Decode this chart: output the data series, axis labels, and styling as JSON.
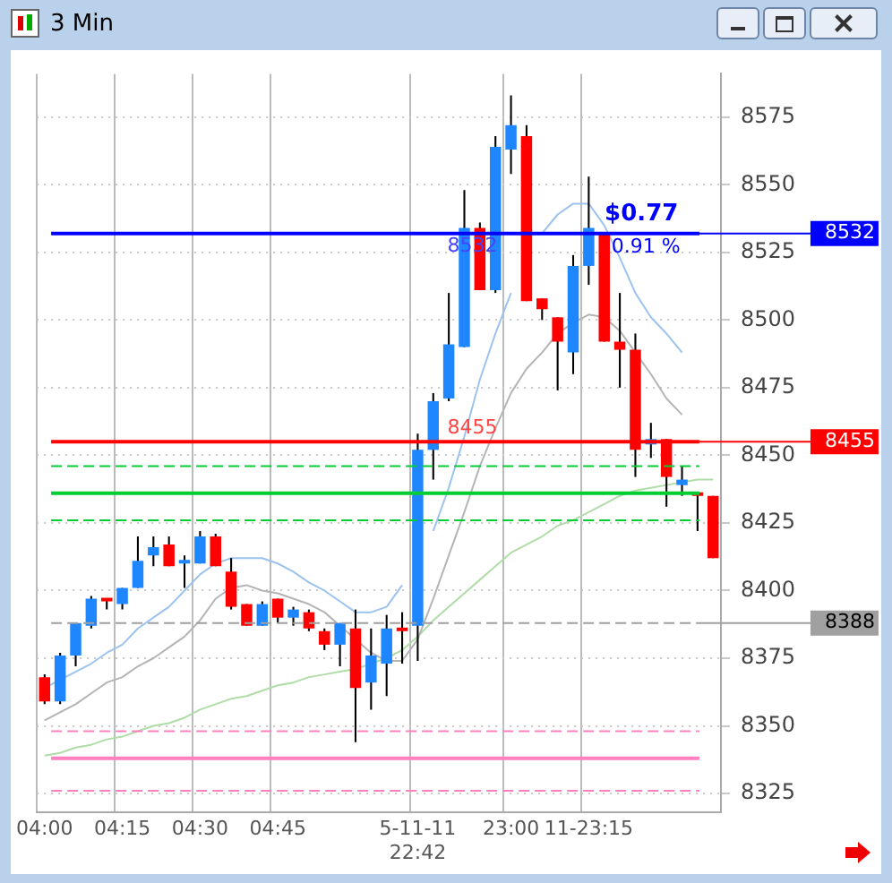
{
  "chart_data": {
    "type": "candlestick",
    "title": "3 Min",
    "categories": [
      "04:00",
      null,
      null,
      null,
      null,
      "04:15",
      null,
      null,
      null,
      null,
      "04:30",
      null,
      null,
      null,
      null,
      "04:45",
      null,
      null,
      null,
      null,
      null,
      null,
      null,
      null,
      "5-11-11 22:42",
      null,
      null,
      null,
      null,
      null,
      "23:00",
      null,
      null,
      null,
      null,
      "11-23:15",
      null,
      null,
      null,
      null,
      null,
      null,
      null,
      null
    ],
    "ohlc": [
      [
        8368,
        8369,
        8358,
        8359
      ],
      [
        8359,
        8377,
        8358,
        8376
      ],
      [
        8376,
        8388,
        8372,
        8388
      ],
      [
        8387,
        8398,
        8386,
        8397
      ],
      [
        8397,
        8397,
        8393,
        8396
      ],
      [
        8395,
        8401,
        8393,
        8401
      ],
      [
        8401,
        8420,
        8401,
        8411
      ],
      [
        8413,
        8420,
        8409,
        8416
      ],
      [
        8417,
        8420,
        8409,
        8409
      ],
      [
        8410,
        8413,
        8401,
        8411
      ],
      [
        8410,
        8422,
        8410,
        8420
      ],
      [
        8420,
        8421,
        8409,
        8409
      ],
      [
        8407,
        8412,
        8393,
        8394
      ],
      [
        8395,
        8395,
        8387,
        8387
      ],
      [
        8387,
        8396,
        8387,
        8395
      ],
      [
        8397,
        8397,
        8388,
        8390
      ],
      [
        8390,
        8394,
        8387,
        8393
      ],
      [
        8392,
        8393,
        8385,
        8386
      ],
      [
        8385,
        8386,
        8378,
        8380
      ],
      [
        8380,
        8388,
        8372,
        8388
      ],
      [
        8386,
        8393,
        8344,
        8364
      ],
      [
        8366,
        8386,
        8356,
        8376
      ],
      [
        8373,
        8391,
        8361,
        8386
      ],
      [
        8386,
        8392,
        8373,
        8385
      ],
      [
        8387,
        8458,
        8374,
        8452
      ],
      [
        8452,
        8473,
        8441,
        8470
      ],
      [
        8471,
        8510,
        8470,
        8491
      ],
      [
        8490,
        8548,
        8490,
        8534
      ],
      [
        8534,
        8536,
        8511,
        8511
      ],
      [
        8511,
        8568,
        8510,
        8564
      ],
      [
        8563,
        8583,
        8554,
        8572
      ],
      [
        8568,
        8572,
        8507,
        8507
      ],
      [
        8508,
        8508,
        8500,
        8504
      ],
      [
        8501,
        8501,
        8474,
        8492
      ],
      [
        8488,
        8524,
        8480,
        8520
      ],
      [
        8520,
        8553,
        8513,
        8534
      ],
      [
        8532,
        8532,
        8492,
        8492
      ],
      [
        8492,
        8510,
        8475,
        8489
      ],
      [
        8489,
        8495,
        8442,
        8452
      ],
      [
        8454,
        8462,
        8449,
        8456
      ],
      [
        8456,
        8456,
        8431,
        8442
      ],
      [
        8439,
        8446,
        8435,
        8441
      ],
      [
        8436,
        8436,
        8422,
        8435
      ],
      [
        8435,
        8435,
        8412,
        8412
      ]
    ],
    "series": [
      {
        "type": "line",
        "color": "#9cc3ee",
        "values": [
          8364,
          8367,
          8370,
          8373,
          8377,
          8380,
          8386,
          8390,
          8394,
          8400,
          8406,
          8410,
          8412,
          8412,
          8412,
          8410,
          8407,
          8403,
          8400,
          8396,
          8392,
          8392,
          8394,
          8402,
          null,
          8422,
          8438,
          8457,
          8478,
          8495,
          8510,
          null,
          8532,
          8539,
          8543,
          8543,
          8535,
          8523,
          8510,
          8501,
          8495,
          8488,
          null,
          null
        ]
      },
      {
        "type": "line",
        "color": "#b4b4b4",
        "values": [
          8352,
          8355,
          8358,
          8362,
          8366,
          8368,
          8372,
          8375,
          8379,
          8383,
          8389,
          8397,
          8401,
          8402,
          8400,
          8399,
          8397,
          8395,
          8392,
          8387,
          8382,
          8377,
          8374,
          8374,
          8382,
          8397,
          8413,
          8429,
          8446,
          8460,
          8473,
          8482,
          8488,
          8495,
          8499,
          8502,
          8501,
          8496,
          8488,
          8480,
          8471,
          8465,
          null,
          null
        ]
      },
      {
        "type": "line",
        "color": "#b0dca8",
        "values": [
          8339,
          8340,
          8342,
          8343,
          8345,
          8346,
          8348,
          8350,
          8351,
          8353,
          8356,
          8358,
          8360,
          8361,
          8363,
          8365,
          8366,
          8368,
          8369,
          8370,
          8371,
          8373,
          8375,
          8378,
          8383,
          8389,
          8394,
          8399,
          8404,
          8409,
          8414,
          8417,
          8420,
          8424,
          8426,
          8429,
          8432,
          8435,
          8437,
          8438,
          8439,
          8440,
          8441,
          8441
        ]
      }
    ],
    "ylim": [
      8318,
      8591
    ],
    "yticks": [
      8325,
      8350,
      8375,
      8400,
      8425,
      8450,
      8475,
      8500,
      8525,
      8550,
      8575
    ],
    "grid": true,
    "legend": false,
    "ref_lines": [
      {
        "axis": "y",
        "value": 8532,
        "label": "8532",
        "color": "#0000ff",
        "line_style": "solid"
      },
      {
        "axis": "y",
        "value": 8455,
        "label": "8455",
        "color": "#ff0000",
        "line_style": "solid"
      },
      {
        "axis": "y",
        "value": 8388,
        "label": "8388",
        "color": "#a0a0a0",
        "line_style": "dashed"
      },
      {
        "axis": "y",
        "value": 8446,
        "color": "#00cc33",
        "line_style": "dashed"
      },
      {
        "axis": "y",
        "value": 8436,
        "color": "#00cc33",
        "line_style": "solid"
      },
      {
        "axis": "y",
        "value": 8426,
        "color": "#00cc33",
        "line_style": "dashed"
      },
      {
        "axis": "y",
        "value": 8348,
        "color": "#ff80c0",
        "line_style": "dashed"
      },
      {
        "axis": "y",
        "value": 8338,
        "color": "#ff80c0",
        "line_style": "solid"
      },
      {
        "axis": "y",
        "value": 8326,
        "color": "#ff80c0",
        "line_style": "dashed"
      }
    ],
    "annotations": [
      "$0.77",
      "0.91 %",
      {
        "text": "8532",
        "y": 8527
      },
      {
        "text": "8455",
        "y": 8460
      }
    ]
  }
}
